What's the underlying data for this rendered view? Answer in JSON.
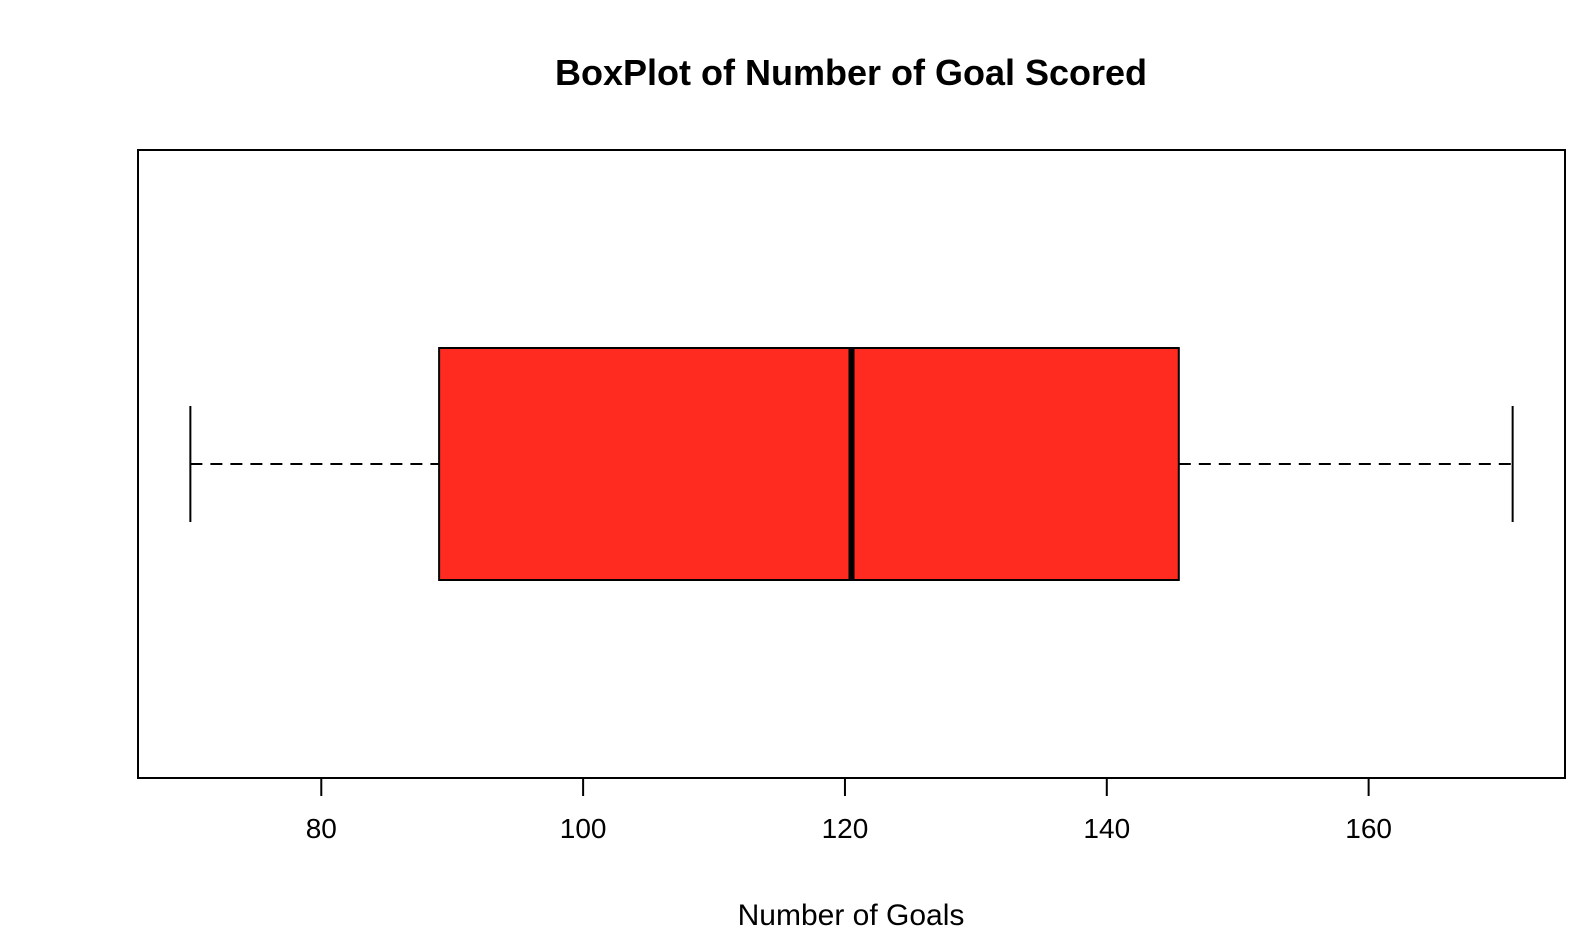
{
  "chart_data": {
    "type": "boxplot",
    "orientation": "horizontal",
    "title": "BoxPlot of Number of Goal Scored",
    "xlabel": "Number of Goals",
    "ylabel": "",
    "xlim": [
      66,
      175
    ],
    "x_ticks": [
      80,
      100,
      120,
      140,
      160
    ],
    "x_tick_labels": [
      "80",
      "100",
      "120",
      "140",
      "160"
    ],
    "series": [
      {
        "min": 70,
        "q1": 89,
        "median": 120.5,
        "q3": 145.5,
        "max": 171
      }
    ],
    "colors": {
      "box_fill": "#ff2a20",
      "stroke": "#000000"
    },
    "grid": false,
    "legend": "none"
  }
}
